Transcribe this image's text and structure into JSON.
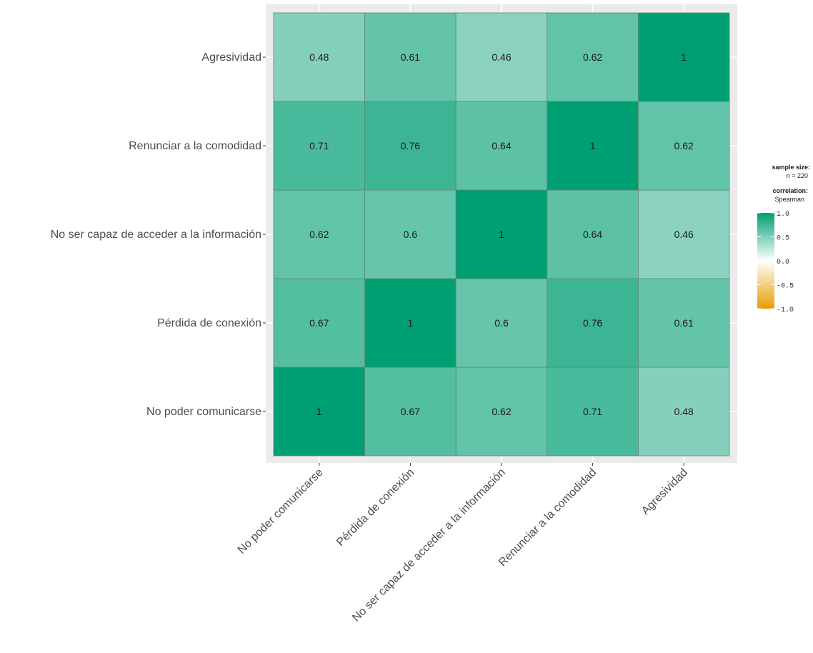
{
  "chart_data": {
    "type": "heatmap",
    "title": "",
    "xlabel": "",
    "ylabel": "",
    "variables": [
      "No poder comunicarse",
      "Pérdida de conexión",
      "No ser capaz de acceder a la información",
      "Renunciar a la comodidad",
      "Agresividad"
    ],
    "matrix": [
      [
        1,
        0.67,
        0.62,
        0.71,
        0.48
      ],
      [
        0.67,
        1,
        0.6,
        0.76,
        0.61
      ],
      [
        0.62,
        0.6,
        1,
        0.64,
        0.46
      ],
      [
        0.71,
        0.76,
        0.64,
        1,
        0.62
      ],
      [
        0.48,
        0.61,
        0.46,
        0.62,
        1
      ]
    ],
    "labels": [
      [
        "1",
        "0.67",
        "0.62",
        "0.71",
        "0.48"
      ],
      [
        "0.67",
        "1",
        "0.6",
        "0.76",
        "0.61"
      ],
      [
        "0.62",
        "0.6",
        "1",
        "0.64",
        "0.46"
      ],
      [
        "0.71",
        "0.76",
        "0.64",
        "1",
        "0.62"
      ],
      [
        "0.48",
        "0.61",
        "0.46",
        "0.62",
        "1"
      ]
    ],
    "color_scale": {
      "low": "#E69F00",
      "mid": "#FFFFFF",
      "high": "#009E73",
      "limits": [
        -1.0,
        1.0
      ],
      "ticks": [
        "1.0",
        "0.5",
        "0.0",
        "-0.5",
        "-1.0"
      ]
    },
    "legend": {
      "sample_title": "sample size:",
      "sample_value": "n = 220",
      "corr_title": "correlation:",
      "corr_method": "Spearman",
      "placement": "right"
    },
    "panel_background": "#EBEBEB",
    "grid": true
  }
}
